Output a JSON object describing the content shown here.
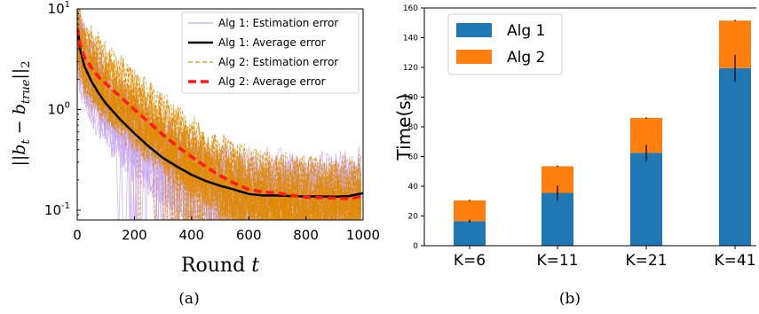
{
  "chart_data": [
    {
      "panel_label": "(a)",
      "type": "line",
      "xlabel": "Round t",
      "ylabel": "||b_t − b_true||_2",
      "xlim": [
        0,
        1000
      ],
      "ylim": [
        0.08,
        10
      ],
      "yscale": "log",
      "xticks": [
        "0",
        "200",
        "400",
        "600",
        "800",
        "1000"
      ],
      "yticks": [
        {
          "base": "10",
          "exp": "1",
          "value": 10
        },
        {
          "base": "10",
          "exp": "0",
          "value": 1
        },
        {
          "base": "10",
          "exp": "-1",
          "value": 0.1
        }
      ],
      "legend_position": "top-right",
      "series": [
        {
          "name": "Alg 1: Estimation error",
          "color": "#c9a9f0",
          "style": "thin"
        },
        {
          "name": "Alg 1: Average error",
          "color": "#000000",
          "style": "solid",
          "x": [
            1,
            10,
            25,
            50,
            75,
            100,
            150,
            200,
            250,
            300,
            350,
            400,
            450,
            500,
            550,
            600,
            650,
            700,
            750,
            800,
            850,
            900,
            950,
            1000
          ],
          "y": [
            6.5,
            4.0,
            2.7,
            1.9,
            1.45,
            1.15,
            0.8,
            0.58,
            0.43,
            0.33,
            0.27,
            0.225,
            0.195,
            0.175,
            0.16,
            0.145,
            0.14,
            0.14,
            0.138,
            0.137,
            0.137,
            0.136,
            0.138,
            0.148
          ]
        },
        {
          "name": "Alg 2: Estimation error",
          "color": "#e08a00",
          "style": "thin-dashed"
        },
        {
          "name": "Alg 2: Average error",
          "color": "#ff1a1a",
          "style": "thick-dashed",
          "x": [
            1,
            10,
            25,
            50,
            75,
            100,
            150,
            200,
            250,
            300,
            350,
            400,
            450,
            500,
            550,
            600,
            650,
            700,
            750,
            800,
            850,
            900,
            950,
            1000
          ],
          "y": [
            6.5,
            4.5,
            3.3,
            2.6,
            2.1,
            1.8,
            1.35,
            1.0,
            0.75,
            0.56,
            0.43,
            0.34,
            0.27,
            0.22,
            0.185,
            0.16,
            0.152,
            0.148,
            0.14,
            0.135,
            0.133,
            0.132,
            0.13,
            0.138
          ]
        }
      ]
    },
    {
      "panel_label": "(b)",
      "type": "bar",
      "stacked": true,
      "ylabel": "Time(s)",
      "categories": [
        "K=6",
        "K=11",
        "K=21",
        "K=41"
      ],
      "ylim": [
        0,
        160
      ],
      "yticks": [
        "0",
        "20",
        "40",
        "60",
        "80",
        "100",
        "120",
        "140",
        "160"
      ],
      "legend_position": "top-left",
      "series": [
        {
          "name": "Alg 1",
          "color": "#1f77b4",
          "values": [
            16.5,
            35.5,
            62.5,
            119.5
          ],
          "err": [
            1.0,
            5.0,
            5.5,
            9.0
          ]
        },
        {
          "name": "Alg 2",
          "color": "#ff7f0e",
          "values": [
            14.0,
            18.0,
            23.5,
            32.0
          ],
          "err": [
            0.5,
            0.5,
            0.5,
            0.5
          ]
        }
      ]
    }
  ]
}
